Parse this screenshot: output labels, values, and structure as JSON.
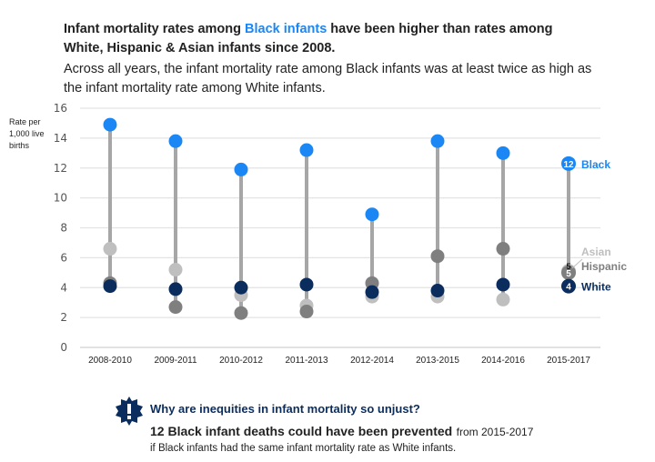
{
  "title": {
    "prefix": "Infant mortality rates among ",
    "highlight": "Black infants",
    "suffix": " have been higher than rates among White, Hispanic & Asian infants since 2008."
  },
  "subtitle": "Across all years, the infant mortality rate among Black infants was at least twice as high as the infant mortality rate among White infants.",
  "callout": {
    "icon": "exclamation-badge-icon",
    "question": "Why are inequities in infant mortality so unjust?",
    "headline": "12 Black infant deaths could have been prevented",
    "headline_suffix": "from 2015-2017",
    "detail": "if Black infants had the same infant mortality rate as White infants."
  },
  "chart_data": {
    "type": "scatter",
    "subtype": "dot-plot-with-range-stems",
    "ylabel": "Rate per 1,000 live births",
    "ylim": [
      0,
      16
    ],
    "yticks": [
      0,
      2,
      4,
      6,
      8,
      10,
      12,
      14,
      16
    ],
    "grid": true,
    "categories": [
      "2008-2010",
      "2009-2011",
      "2010-2012",
      "2011-2013",
      "2012-2014",
      "2013-2015",
      "2014-2016",
      "2015-2017"
    ],
    "series": [
      {
        "name": "Asian",
        "color": "#bfbfbf",
        "values": [
          6.6,
          5.2,
          3.5,
          2.8,
          3.4,
          3.4,
          3.2,
          5.1
        ]
      },
      {
        "name": "Hispanic",
        "color": "#7f7f7f",
        "values": [
          4.3,
          2.7,
          2.3,
          2.4,
          4.3,
          6.1,
          6.6,
          5.0
        ]
      },
      {
        "name": "White",
        "color": "#0b2d5e",
        "values": [
          4.1,
          3.9,
          4.0,
          4.2,
          3.7,
          3.8,
          4.2,
          4.1
        ]
      },
      {
        "name": "Black",
        "color": "#1a87f5",
        "values": [
          14.9,
          13.8,
          11.9,
          13.2,
          8.9,
          13.8,
          13.0,
          12.3
        ]
      }
    ],
    "last_point_labels": {
      "Black": "12",
      "Asian": "5",
      "Hispanic": "5",
      "White": "4"
    },
    "stem_color": "#a6a6a6"
  }
}
